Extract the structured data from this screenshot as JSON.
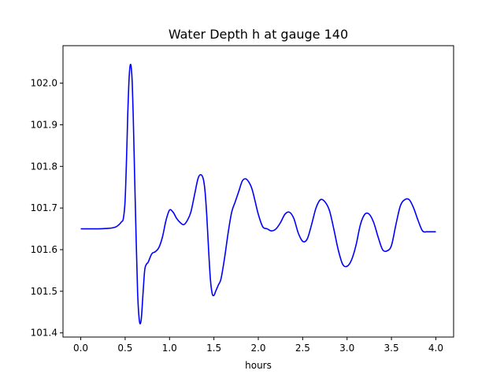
{
  "chart_data": {
    "type": "line",
    "title": "Water Depth h at gauge 140",
    "xlabel": "hours",
    "ylabel": "",
    "xlim": [
      -0.2,
      4.2
    ],
    "ylim": [
      101.39,
      102.09
    ],
    "xticks": [
      0.0,
      0.5,
      1.0,
      1.5,
      2.0,
      2.5,
      3.0,
      3.5,
      4.0
    ],
    "xtick_labels": [
      "0.0",
      "0.5",
      "1.0",
      "1.5",
      "2.0",
      "2.5",
      "3.0",
      "3.5",
      "4.0"
    ],
    "yticks": [
      101.4,
      101.5,
      101.6,
      101.7,
      101.8,
      101.9,
      102.0
    ],
    "ytick_labels": [
      "101.4",
      "101.5",
      "101.6",
      "101.7",
      "101.8",
      "101.9",
      "102.0"
    ],
    "grid": false,
    "series": [
      {
        "color": "#0000ff",
        "x": [
          0.0,
          0.1,
          0.2,
          0.3,
          0.35,
          0.4,
          0.43,
          0.46,
          0.48,
          0.5,
          0.52,
          0.53,
          0.54,
          0.55,
          0.56,
          0.57,
          0.58,
          0.59,
          0.6,
          0.62,
          0.64,
          0.66,
          0.68,
          0.7,
          0.72,
          0.74,
          0.76,
          0.8,
          0.84,
          0.88,
          0.92,
          0.96,
          1.0,
          1.04,
          1.08,
          1.12,
          1.16,
          1.2,
          1.24,
          1.28,
          1.32,
          1.35,
          1.38,
          1.4,
          1.42,
          1.44,
          1.46,
          1.48,
          1.5,
          1.52,
          1.55,
          1.58,
          1.62,
          1.66,
          1.7,
          1.74,
          1.78,
          1.82,
          1.86,
          1.9,
          1.93,
          1.96,
          2.0,
          2.05,
          2.1,
          2.15,
          2.2,
          2.25,
          2.3,
          2.35,
          2.4,
          2.45,
          2.5,
          2.55,
          2.6,
          2.65,
          2.7,
          2.75,
          2.8,
          2.85,
          2.9,
          2.95,
          3.0,
          3.05,
          3.1,
          3.15,
          3.2,
          3.25,
          3.3,
          3.35,
          3.4,
          3.45,
          3.5,
          3.55,
          3.6,
          3.65,
          3.7,
          3.75,
          3.8,
          3.85,
          3.9,
          3.95,
          4.0
        ],
        "y": [
          101.65,
          101.65,
          101.65,
          101.651,
          101.652,
          101.655,
          101.66,
          101.667,
          101.675,
          101.72,
          101.85,
          101.93,
          101.99,
          102.03,
          102.045,
          102.035,
          102.0,
          101.93,
          101.84,
          101.66,
          101.5,
          101.43,
          101.43,
          101.49,
          101.55,
          101.565,
          101.57,
          101.59,
          101.595,
          101.605,
          101.63,
          101.67,
          101.695,
          101.69,
          101.675,
          101.665,
          101.66,
          101.67,
          101.69,
          101.73,
          101.77,
          101.78,
          101.77,
          101.74,
          101.68,
          101.6,
          101.53,
          101.495,
          101.49,
          101.5,
          101.515,
          101.53,
          101.58,
          101.64,
          101.69,
          101.715,
          101.74,
          101.765,
          101.77,
          101.76,
          101.745,
          101.72,
          101.685,
          101.655,
          101.65,
          101.645,
          101.65,
          101.665,
          101.685,
          101.69,
          101.675,
          101.64,
          101.62,
          101.625,
          101.66,
          101.7,
          101.72,
          101.715,
          101.695,
          101.65,
          101.6,
          101.565,
          101.56,
          101.575,
          101.61,
          101.66,
          101.685,
          101.685,
          101.665,
          101.63,
          101.6,
          101.597,
          101.61,
          101.66,
          101.705,
          101.72,
          101.72,
          101.7,
          101.67,
          101.645,
          101.643,
          101.643,
          101.643
        ]
      }
    ]
  }
}
